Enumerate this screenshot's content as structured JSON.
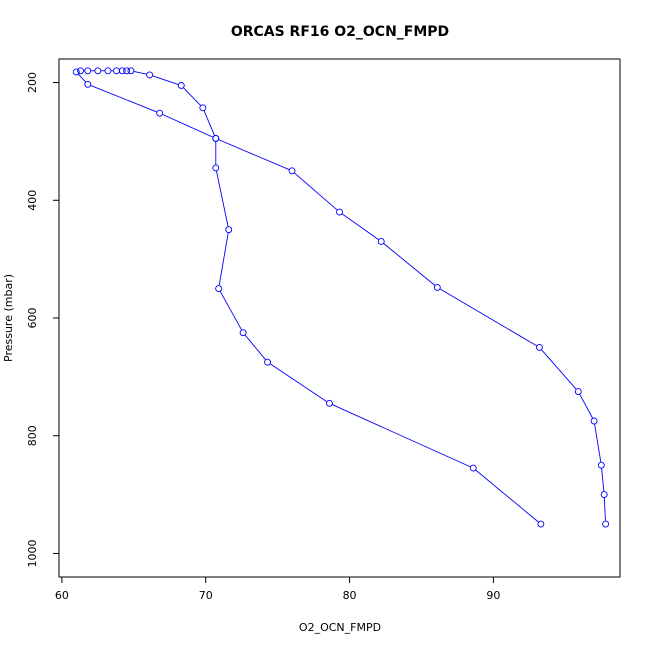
{
  "chart_data": {
    "type": "line",
    "title": "ORCAS RF16 O2_OCN_FMPD",
    "xlabel": "O2_OCN_FMPD",
    "ylabel": "Pressure (mbar)",
    "xlim": [
      59.8,
      98.8
    ],
    "ylim": [
      1040,
      160
    ],
    "y_reversed": true,
    "x_ticks": [
      60,
      70,
      80,
      90
    ],
    "x_tick_labels": [
      "60",
      "70",
      "80",
      "90"
    ],
    "y_ticks": [
      200,
      400,
      600,
      800,
      1000
    ],
    "y_tick_labels": [
      "200",
      "400",
      "600",
      "800",
      "1000"
    ],
    "grid": false,
    "series_color": "#0000ff",
    "series": [
      {
        "x": [
          93.3,
          88.6,
          78.6,
          74.3,
          72.6,
          70.9,
          71.6,
          70.7,
          70.7,
          66.8,
          61.8,
          61.0,
          61.3,
          61.8,
          62.5,
          63.2,
          63.8,
          64.2,
          64.5,
          64.8,
          66.1,
          68.3,
          69.8,
          70.7,
          76.0,
          79.3,
          82.2,
          86.1,
          93.2,
          95.9,
          97.0,
          97.5,
          97.7,
          97.8
        ],
        "y": [
          950,
          855,
          745,
          675,
          625,
          550,
          450,
          345,
          295,
          252,
          203,
          182,
          180,
          180,
          180,
          180,
          180,
          180,
          180,
          180,
          187,
          205,
          243,
          295,
          350,
          420,
          470,
          548,
          650,
          725,
          775,
          850,
          900,
          950
        ]
      }
    ]
  }
}
